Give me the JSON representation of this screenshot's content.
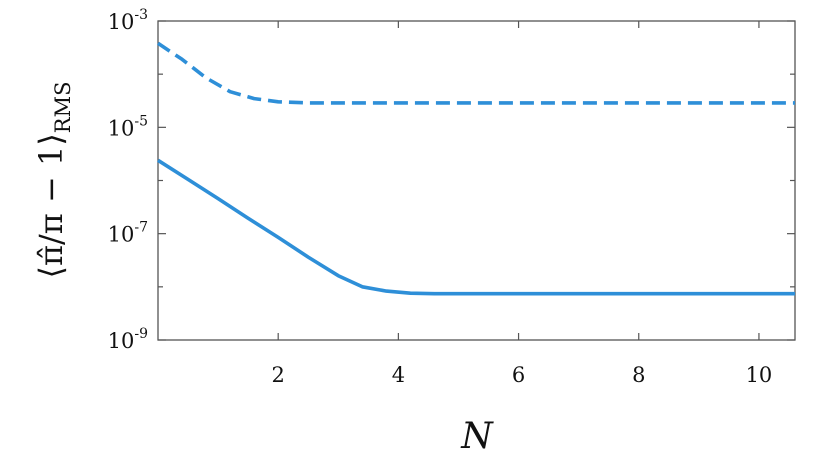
{
  "chart_data": {
    "type": "line",
    "title": "",
    "xlabel": "N",
    "ylabel": "⟨π̂/π − 1⟩",
    "ylabel_subscript": "RMS",
    "xlim": [
      0,
      10.6
    ],
    "ylim_exponent": [
      -9,
      -3
    ],
    "yscale": "log",
    "grid": false,
    "legend": "none",
    "x_ticks": [
      {
        "value": 2,
        "label": "2"
      },
      {
        "value": 4,
        "label": "4"
      },
      {
        "value": 6,
        "label": "6"
      },
      {
        "value": 8,
        "label": "8"
      },
      {
        "value": 10,
        "label": "10"
      }
    ],
    "y_ticks": [
      {
        "exponent": -3,
        "base": "10",
        "power": "-3"
      },
      {
        "exponent": -5,
        "base": "10",
        "power": "-5"
      },
      {
        "exponent": -7,
        "base": "10",
        "power": "-7"
      },
      {
        "exponent": -9,
        "base": "10",
        "power": "-9"
      }
    ],
    "series": [
      {
        "style": "dashed",
        "color": "#2e8fd8",
        "x": [
          0,
          0.4,
          0.8,
          1.2,
          1.6,
          2.0,
          2.5,
          3,
          4,
          5,
          6,
          7,
          8,
          9,
          10,
          10.6
        ],
        "y_exponent": [
          -3.42,
          -3.72,
          -4.07,
          -4.33,
          -4.46,
          -4.52,
          -4.54,
          -4.54,
          -4.54,
          -4.54,
          -4.54,
          -4.54,
          -4.54,
          -4.54,
          -4.54,
          -4.54
        ]
      },
      {
        "style": "solid",
        "color": "#2e8fd8",
        "x": [
          0,
          0.5,
          1,
          1.5,
          2,
          2.5,
          3,
          3.4,
          3.8,
          4.2,
          4.6,
          5,
          6,
          7,
          8,
          9,
          10,
          10.6
        ],
        "y_exponent": [
          -5.62,
          -5.98,
          -6.34,
          -6.71,
          -7.07,
          -7.44,
          -7.79,
          -8.0,
          -8.08,
          -8.12,
          -8.13,
          -8.13,
          -8.13,
          -8.13,
          -8.13,
          -8.13,
          -8.13,
          -8.13
        ]
      }
    ]
  }
}
